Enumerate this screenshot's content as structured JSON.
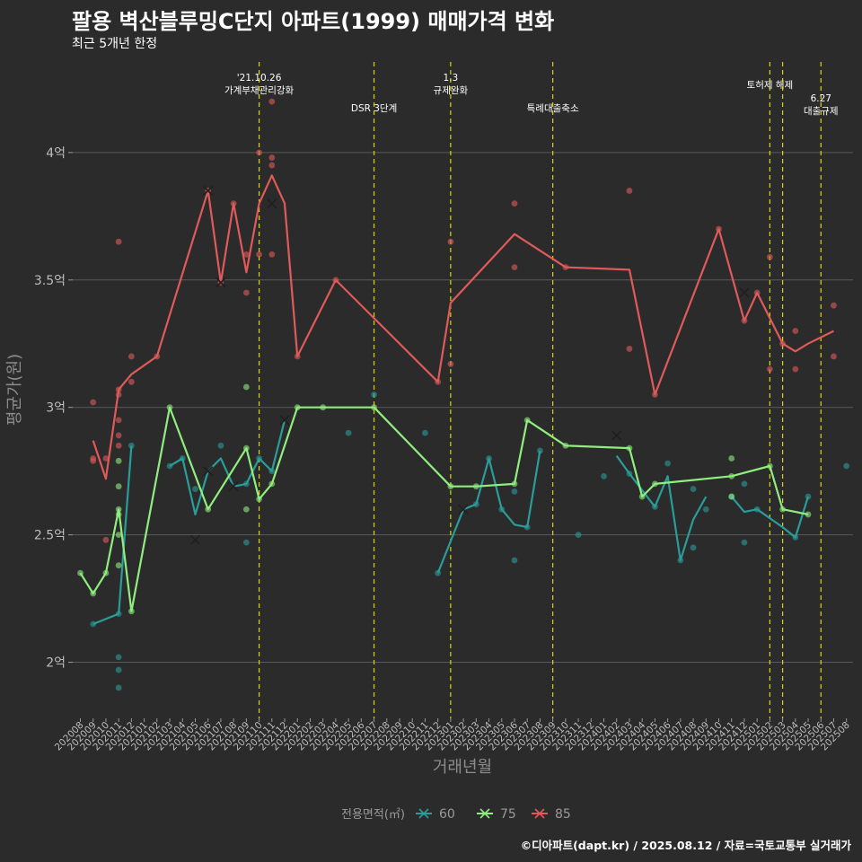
{
  "header": {
    "title": "팔용 벽산블루밍C단지 아파트(1999) 매매가격 변화",
    "subtitle": "최근 5개년 한정"
  },
  "caption": "©디아파트(dapt.kr) / 2025.08.12 / 자료=국토교통부 실거래가",
  "chart_data": {
    "type": "line",
    "xlabel": "거래년월",
    "ylabel": "평균가(원)",
    "x_categories": [
      "202008",
      "202009",
      "202010",
      "202011",
      "202012",
      "202101",
      "202102",
      "202103",
      "202104",
      "202105",
      "202106",
      "202107",
      "202108",
      "202109",
      "202110",
      "202111",
      "202112",
      "202201",
      "202202",
      "202203",
      "202204",
      "202205",
      "202206",
      "202207",
      "202208",
      "202209",
      "202210",
      "202211",
      "202212",
      "202301",
      "202302",
      "202303",
      "202304",
      "202305",
      "202306",
      "202307",
      "202308",
      "202309",
      "202310",
      "202311",
      "202312",
      "202401",
      "202402",
      "202403",
      "202404",
      "202405",
      "202406",
      "202407",
      "202408",
      "202409",
      "202410",
      "202411",
      "202412",
      "202501",
      "202502",
      "202503",
      "202504",
      "202505",
      "202506",
      "202507",
      "202508"
    ],
    "y_ticks": [
      {
        "value": 2.0,
        "label": "2억"
      },
      {
        "value": 2.5,
        "label": "2.5억"
      },
      {
        "value": 3.0,
        "label": "3억"
      },
      {
        "value": 3.5,
        "label": "3.5억"
      },
      {
        "value": 4.0,
        "label": "4억"
      }
    ],
    "ylim": [
      1.78,
      4.38
    ],
    "grid": true,
    "legend": {
      "title": "전용면적(㎡)",
      "position": "bottom"
    },
    "events": [
      {
        "x": "202110",
        "label": "'21.10.26\n가계부채관리강화"
      },
      {
        "x": "202207",
        "label": "DSR 3단계"
      },
      {
        "x": "202301",
        "label": "1.3\n규제완화"
      },
      {
        "x": "202309",
        "label": "특례대출축소"
      },
      {
        "x": "202502",
        "label": "토허제 해제"
      },
      {
        "x": "202503",
        "label": ""
      },
      {
        "x": "202506",
        "label": "6.27\n대출규제"
      }
    ],
    "series": [
      {
        "name": "60",
        "color": "#2a9d9a",
        "line_segments": [
          [
            [
              "202009",
              2.15
            ],
            [
              "202011",
              2.19
            ],
            [
              "202012",
              2.85
            ]
          ],
          [
            [
              "202103",
              2.77
            ],
            [
              "202104",
              2.8
            ],
            [
              "202105",
              2.58
            ],
            [
              "202106",
              2.75
            ],
            [
              "202107",
              2.8
            ],
            [
              "202108",
              2.69
            ],
            [
              "202109",
              2.7
            ],
            [
              "202110",
              2.8
            ],
            [
              "202111",
              2.75
            ],
            [
              "202112",
              2.95
            ]
          ],
          [
            [
              "202212",
              2.35
            ],
            [
              "202302",
              2.6
            ],
            [
              "202303",
              2.62
            ],
            [
              "202304",
              2.8
            ],
            [
              "202305",
              2.6
            ],
            [
              "202306",
              2.54
            ],
            [
              "202307",
              2.53
            ],
            [
              "202308",
              2.83
            ]
          ],
          [
            [
              "202402",
              2.81
            ],
            [
              "202403",
              2.74
            ],
            [
              "202405",
              2.61
            ],
            [
              "202406",
              2.73
            ],
            [
              "202407",
              2.4
            ],
            [
              "202408",
              2.56
            ],
            [
              "202409",
              2.65
            ]
          ],
          [
            [
              "202411",
              2.65
            ],
            [
              "202412",
              2.59
            ],
            [
              "202501",
              2.6
            ],
            [
              "202503",
              2.53
            ],
            [
              "202504",
              2.49
            ],
            [
              "202505",
              2.65
            ]
          ]
        ],
        "points": [
          [
            "202009",
            2.15
          ],
          [
            "202011",
            2.19
          ],
          [
            "202011",
            2.02
          ],
          [
            "202011",
            1.97
          ],
          [
            "202011",
            1.9
          ],
          [
            "202012",
            2.85
          ],
          [
            "202103",
            2.77
          ],
          [
            "202104",
            2.8
          ],
          [
            "202105",
            2.68
          ],
          [
            "202107",
            2.85
          ],
          [
            "202109",
            2.7
          ],
          [
            "202109",
            2.47
          ],
          [
            "202110",
            2.8
          ],
          [
            "202111",
            2.75
          ],
          [
            "202205",
            2.9
          ],
          [
            "202207",
            3.05
          ],
          [
            "202211",
            2.9
          ],
          [
            "202212",
            2.35
          ],
          [
            "202303",
            2.62
          ],
          [
            "202304",
            2.8
          ],
          [
            "202305",
            2.6
          ],
          [
            "202306",
            2.67
          ],
          [
            "202306",
            2.4
          ],
          [
            "202307",
            2.53
          ],
          [
            "202308",
            2.83
          ],
          [
            "202311",
            2.5
          ],
          [
            "202401",
            2.73
          ],
          [
            "202403",
            2.74
          ],
          [
            "202405",
            2.61
          ],
          [
            "202406",
            2.78
          ],
          [
            "202407",
            2.4
          ],
          [
            "202408",
            2.68
          ],
          [
            "202408",
            2.45
          ],
          [
            "202409",
            2.6
          ],
          [
            "202411",
            2.65
          ],
          [
            "202412",
            2.7
          ],
          [
            "202412",
            2.47
          ],
          [
            "202501",
            2.6
          ],
          [
            "202504",
            2.49
          ],
          [
            "202505",
            2.65
          ],
          [
            "202508",
            2.77
          ]
        ],
        "markers": [
          [
            "202106",
            2.75
          ],
          [
            "202108",
            2.69
          ],
          [
            "202112",
            2.95
          ],
          [
            "202302",
            2.6
          ],
          [
            "202402",
            2.89
          ],
          [
            "202105",
            2.48
          ]
        ]
      },
      {
        "name": "75",
        "color": "#90ee7e",
        "line_segments": [
          [
            [
              "202008",
              2.35
            ],
            [
              "202009",
              2.27
            ],
            [
              "202010",
              2.35
            ],
            [
              "202011",
              2.6
            ],
            [
              "202012",
              2.2
            ],
            [
              "202103",
              3.0
            ],
            [
              "202106",
              2.6
            ],
            [
              "202109",
              2.84
            ],
            [
              "202110",
              2.64
            ],
            [
              "202111",
              2.7
            ],
            [
              "202201",
              3.0
            ],
            [
              "202207",
              3.0
            ],
            [
              "202301",
              2.69
            ],
            [
              "202303",
              2.69
            ],
            [
              "202306",
              2.7
            ],
            [
              "202307",
              2.95
            ],
            [
              "202310",
              2.85
            ],
            [
              "202403",
              2.84
            ],
            [
              "202404",
              2.65
            ],
            [
              "202405",
              2.7
            ],
            [
              "202411",
              2.73
            ],
            [
              "202502",
              2.77
            ],
            [
              "202503",
              2.6
            ],
            [
              "202505",
              2.58
            ]
          ]
        ],
        "points": [
          [
            "202008",
            2.35
          ],
          [
            "202009",
            2.27
          ],
          [
            "202010",
            2.35
          ],
          [
            "202011",
            2.6
          ],
          [
            "202011",
            2.79
          ],
          [
            "202011",
            2.69
          ],
          [
            "202011",
            2.58
          ],
          [
            "202011",
            2.5
          ],
          [
            "202011",
            2.38
          ],
          [
            "202012",
            2.2
          ],
          [
            "202103",
            3.0
          ],
          [
            "202106",
            2.6
          ],
          [
            "202109",
            2.84
          ],
          [
            "202109",
            3.08
          ],
          [
            "202109",
            2.6
          ],
          [
            "202110",
            2.64
          ],
          [
            "202111",
            2.7
          ],
          [
            "202201",
            3.0
          ],
          [
            "202203",
            3.0
          ],
          [
            "202207",
            3.0
          ],
          [
            "202301",
            2.69
          ],
          [
            "202303",
            2.69
          ],
          [
            "202306",
            2.7
          ],
          [
            "202307",
            2.95
          ],
          [
            "202310",
            2.85
          ],
          [
            "202403",
            2.84
          ],
          [
            "202404",
            2.65
          ],
          [
            "202405",
            2.7
          ],
          [
            "202411",
            2.73
          ],
          [
            "202411",
            2.8
          ],
          [
            "202411",
            2.65
          ],
          [
            "202502",
            2.77
          ],
          [
            "202503",
            2.6
          ],
          [
            "202505",
            2.58
          ]
        ],
        "markers": []
      },
      {
        "name": "85",
        "color": "#e05a5a",
        "line_segments": [
          [
            [
              "202009",
              2.87
            ],
            [
              "202010",
              2.72
            ],
            [
              "202011",
              3.07
            ],
            [
              "202012",
              3.13
            ],
            [
              "202102",
              3.2
            ],
            [
              "202106",
              3.85
            ],
            [
              "202107",
              3.49
            ],
            [
              "202108",
              3.8
            ],
            [
              "202109",
              3.53
            ],
            [
              "202110",
              3.8
            ],
            [
              "202111",
              3.91
            ],
            [
              "202112",
              3.8
            ],
            [
              "202201",
              3.2
            ],
            [
              "202204",
              3.5
            ],
            [
              "202212",
              3.1
            ],
            [
              "202301",
              3.41
            ],
            [
              "202306",
              3.68
            ],
            [
              "202310",
              3.55
            ],
            [
              "202403",
              3.54
            ],
            [
              "202405",
              3.05
            ],
            [
              "202410",
              3.7
            ],
            [
              "202412",
              3.34
            ],
            [
              "202501",
              3.45
            ],
            [
              "202502",
              3.35
            ],
            [
              "202503",
              3.25
            ],
            [
              "202504",
              3.22
            ],
            [
              "202505",
              3.25
            ],
            [
              "202507",
              3.3
            ]
          ]
        ],
        "points": [
          [
            "202009",
            3.02
          ],
          [
            "202009",
            2.8
          ],
          [
            "202009",
            2.79
          ],
          [
            "202010",
            2.8
          ],
          [
            "202010",
            2.48
          ],
          [
            "202011",
            3.65
          ],
          [
            "202011",
            3.07
          ],
          [
            "202011",
            3.05
          ],
          [
            "202011",
            2.95
          ],
          [
            "202011",
            2.89
          ],
          [
            "202011",
            2.85
          ],
          [
            "202012",
            3.2
          ],
          [
            "202012",
            3.1
          ],
          [
            "202102",
            3.2
          ],
          [
            "202106",
            3.85
          ],
          [
            "202107",
            3.49
          ],
          [
            "202108",
            3.8
          ],
          [
            "202109",
            3.6
          ],
          [
            "202109",
            3.45
          ],
          [
            "202110",
            4.0
          ],
          [
            "202110",
            3.6
          ],
          [
            "202111",
            4.2
          ],
          [
            "202111",
            3.98
          ],
          [
            "202111",
            3.95
          ],
          [
            "202111",
            3.6
          ],
          [
            "202201",
            3.2
          ],
          [
            "202204",
            3.5
          ],
          [
            "202212",
            3.1
          ],
          [
            "202301",
            3.65
          ],
          [
            "202301",
            3.17
          ],
          [
            "202306",
            3.8
          ],
          [
            "202306",
            3.55
          ],
          [
            "202310",
            3.55
          ],
          [
            "202403",
            3.85
          ],
          [
            "202403",
            3.23
          ],
          [
            "202405",
            3.05
          ],
          [
            "202410",
            3.7
          ],
          [
            "202412",
            3.34
          ],
          [
            "202501",
            3.45
          ],
          [
            "202502",
            3.59
          ],
          [
            "202502",
            3.15
          ],
          [
            "202503",
            3.25
          ],
          [
            "202504",
            3.3
          ],
          [
            "202504",
            3.15
          ],
          [
            "202507",
            3.4
          ],
          [
            "202507",
            3.2
          ]
        ],
        "markers": [
          [
            "202106",
            3.85
          ],
          [
            "202107",
            3.49
          ],
          [
            "202111",
            3.8
          ],
          [
            "202412",
            3.45
          ]
        ]
      }
    ]
  }
}
